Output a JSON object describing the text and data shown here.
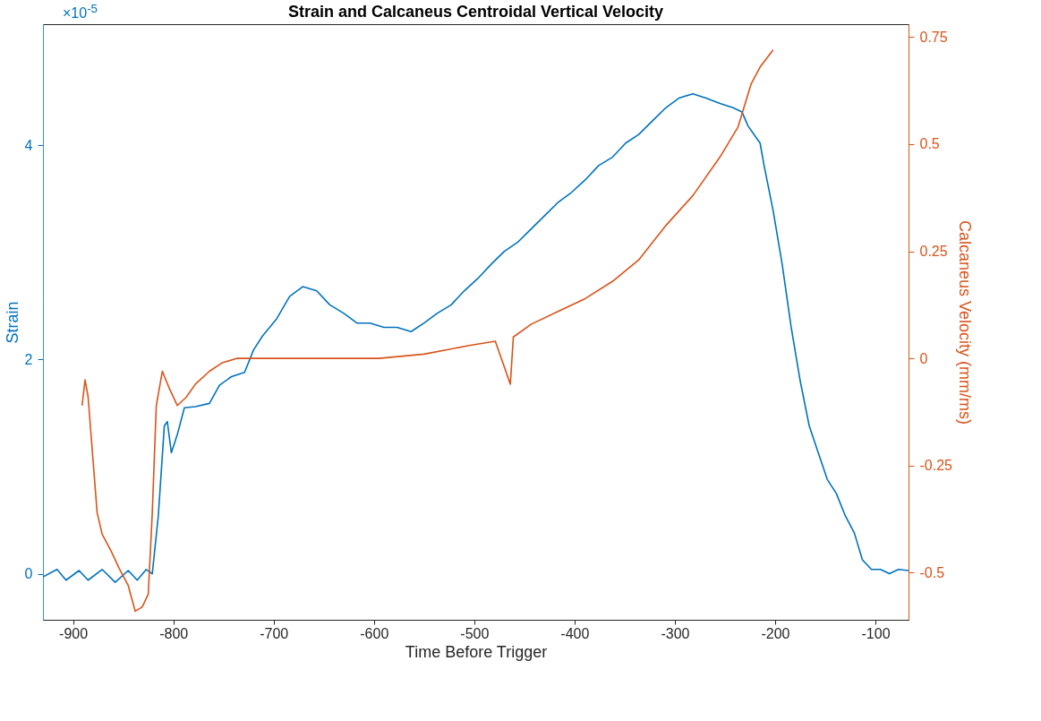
{
  "chart_data": {
    "type": "line",
    "title": "Strain and Calcaneus Centroidal Vertical Velocity",
    "xlabel": "Time Before Trigger",
    "ylabel": "Strain",
    "y2label": "Calcaneus Velocity (mm/ms)",
    "annotations": [
      "×10$^{-5}$"
    ],
    "xlim": [
      -930,
      -67
    ],
    "xticks": [
      -900,
      -800,
      -700,
      -600,
      -500,
      -400,
      -300,
      -200,
      -100
    ],
    "ylim": [
      -0.43,
      5.13
    ],
    "yticks": [
      0,
      2,
      4
    ],
    "y2lim": [
      -0.61,
      0.78
    ],
    "y2ticks": [
      -0.5,
      -0.25,
      0,
      0.25,
      0.5,
      0.75
    ],
    "grid": false,
    "series": [
      {
        "color": "#0072bd",
        "x": [
          -930,
          -916,
          -907,
          -894,
          -885,
          -871,
          -858,
          -845,
          -836,
          -827,
          -821,
          -815,
          -809,
          -806,
          -802,
          -796,
          -789,
          -778,
          -764,
          -754,
          -742,
          -729,
          -720,
          -711,
          -697,
          -684,
          -671,
          -657,
          -644,
          -630,
          -617,
          -604,
          -590,
          -577,
          -563,
          -550,
          -537,
          -523,
          -510,
          -496,
          -483,
          -470,
          -456,
          -443,
          -429,
          -416,
          -403,
          -389,
          -376,
          -362,
          -349,
          -336,
          -322,
          -309,
          -296,
          -282,
          -269,
          -255,
          -242,
          -233,
          -227,
          -221,
          -215,
          -211,
          -202,
          -193,
          -184,
          -175,
          -166,
          -157,
          -148,
          -139,
          -130,
          -121,
          -113,
          -104,
          -95,
          -86,
          -77,
          -67
        ],
        "values": [
          -0.03,
          0.04,
          -0.06,
          0.03,
          -0.06,
          0.04,
          -0.08,
          0.03,
          -0.06,
          0.04,
          0,
          0.54,
          1.38,
          1.42,
          1.13,
          1.3,
          1.55,
          1.56,
          1.59,
          1.76,
          1.84,
          1.88,
          2.09,
          2.22,
          2.38,
          2.59,
          2.68,
          2.64,
          2.51,
          2.43,
          2.34,
          2.34,
          2.3,
          2.3,
          2.26,
          2.34,
          2.43,
          2.51,
          2.64,
          2.76,
          2.89,
          3.01,
          3.1,
          3.22,
          3.35,
          3.47,
          3.56,
          3.68,
          3.81,
          3.89,
          4.02,
          4.1,
          4.23,
          4.35,
          4.44,
          4.48,
          4.44,
          4.39,
          4.35,
          4.31,
          4.18,
          4.1,
          4.02,
          3.81,
          3.39,
          2.89,
          2.3,
          1.8,
          1.38,
          1.13,
          0.88,
          0.75,
          0.54,
          0.38,
          0.13,
          0.04,
          0.04,
          0,
          0.04,
          0.03
        ]
      },
      {
        "color": "#d95319",
        "axis": "y2",
        "x": [
          -891,
          -888,
          -885,
          -880,
          -876,
          -871,
          -862,
          -854,
          -845,
          -838,
          -831,
          -825,
          -821,
          -817,
          -811,
          -804,
          -796,
          -787,
          -778,
          -764,
          -751,
          -737,
          -711,
          -657,
          -595,
          -550,
          -505,
          -479,
          -464,
          -461,
          -443,
          -416,
          -389,
          -362,
          -336,
          -309,
          -282,
          -255,
          -237,
          -224,
          -215,
          -202
        ],
        "values": [
          -0.11,
          -0.05,
          -0.09,
          -0.24,
          -0.36,
          -0.41,
          -0.45,
          -0.49,
          -0.53,
          -0.59,
          -0.58,
          -0.55,
          -0.36,
          -0.11,
          -0.03,
          -0.07,
          -0.11,
          -0.09,
          -0.06,
          -0.03,
          -0.01,
          0,
          0,
          0,
          0,
          0.01,
          0.03,
          0.04,
          -0.06,
          0.05,
          0.08,
          0.11,
          0.14,
          0.18,
          0.23,
          0.31,
          0.38,
          0.47,
          0.54,
          0.64,
          0.68,
          0.72
        ]
      }
    ]
  }
}
